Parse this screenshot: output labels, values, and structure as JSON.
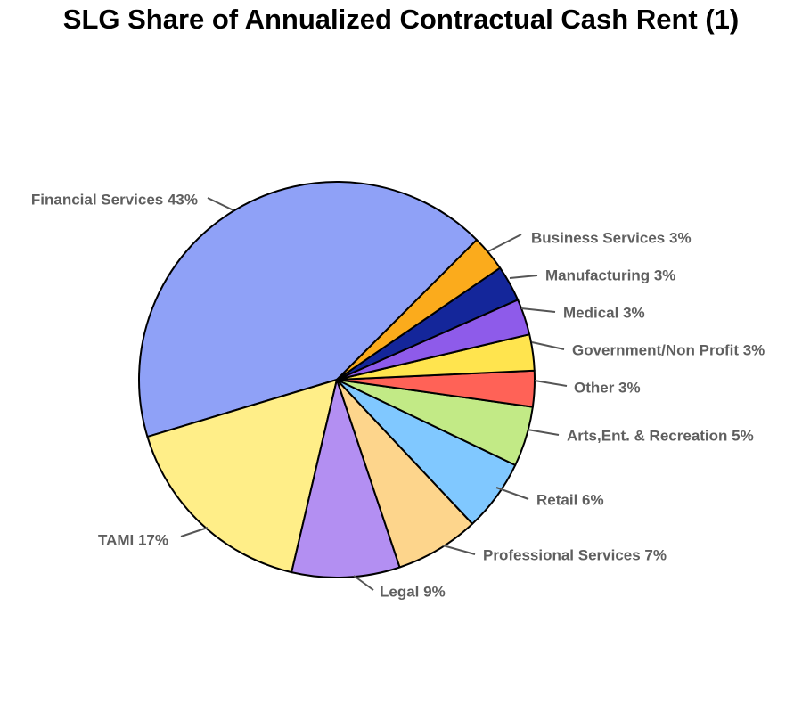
{
  "chart_data": {
    "type": "pie",
    "title": "SLG Share of Annualized Contractual Cash Rent (1)",
    "slices": [
      {
        "label": "Financial Services 43%",
        "name": "Financial Services",
        "value": 43,
        "color": "#8fa1f7"
      },
      {
        "label": "TAMI 17%",
        "name": "TAMI",
        "value": 17,
        "color": "#ffee88"
      },
      {
        "label": "Legal 9%",
        "name": "Legal",
        "value": 9,
        "color": "#b38ff2"
      },
      {
        "label": "Professional Services 7%",
        "name": "Professional Services",
        "value": 7,
        "color": "#fdd58c"
      },
      {
        "label": "Retail 6%",
        "name": "Retail",
        "value": 6,
        "color": "#80c8ff"
      },
      {
        "label": "Arts,Ent. & Recreation 5%",
        "name": "Arts,Ent. & Recreation",
        "value": 5,
        "color": "#c2ea86"
      },
      {
        "label": "Other 3%",
        "name": "Other",
        "value": 3,
        "color": "#ff6257"
      },
      {
        "label": "Government/Non Profit 3%",
        "name": "Government/Non Profit",
        "value": 3,
        "color": "#ffe44e"
      },
      {
        "label": "Medical 3%",
        "name": "Medical",
        "value": 3,
        "color": "#8e5bea"
      },
      {
        "label": "Manufacturing 3%",
        "name": "Manufacturing",
        "value": 3,
        "color": "#14269a"
      },
      {
        "label": "Business Services 3%",
        "name": "Business Services",
        "value": 3,
        "color": "#fbab1c"
      }
    ]
  }
}
